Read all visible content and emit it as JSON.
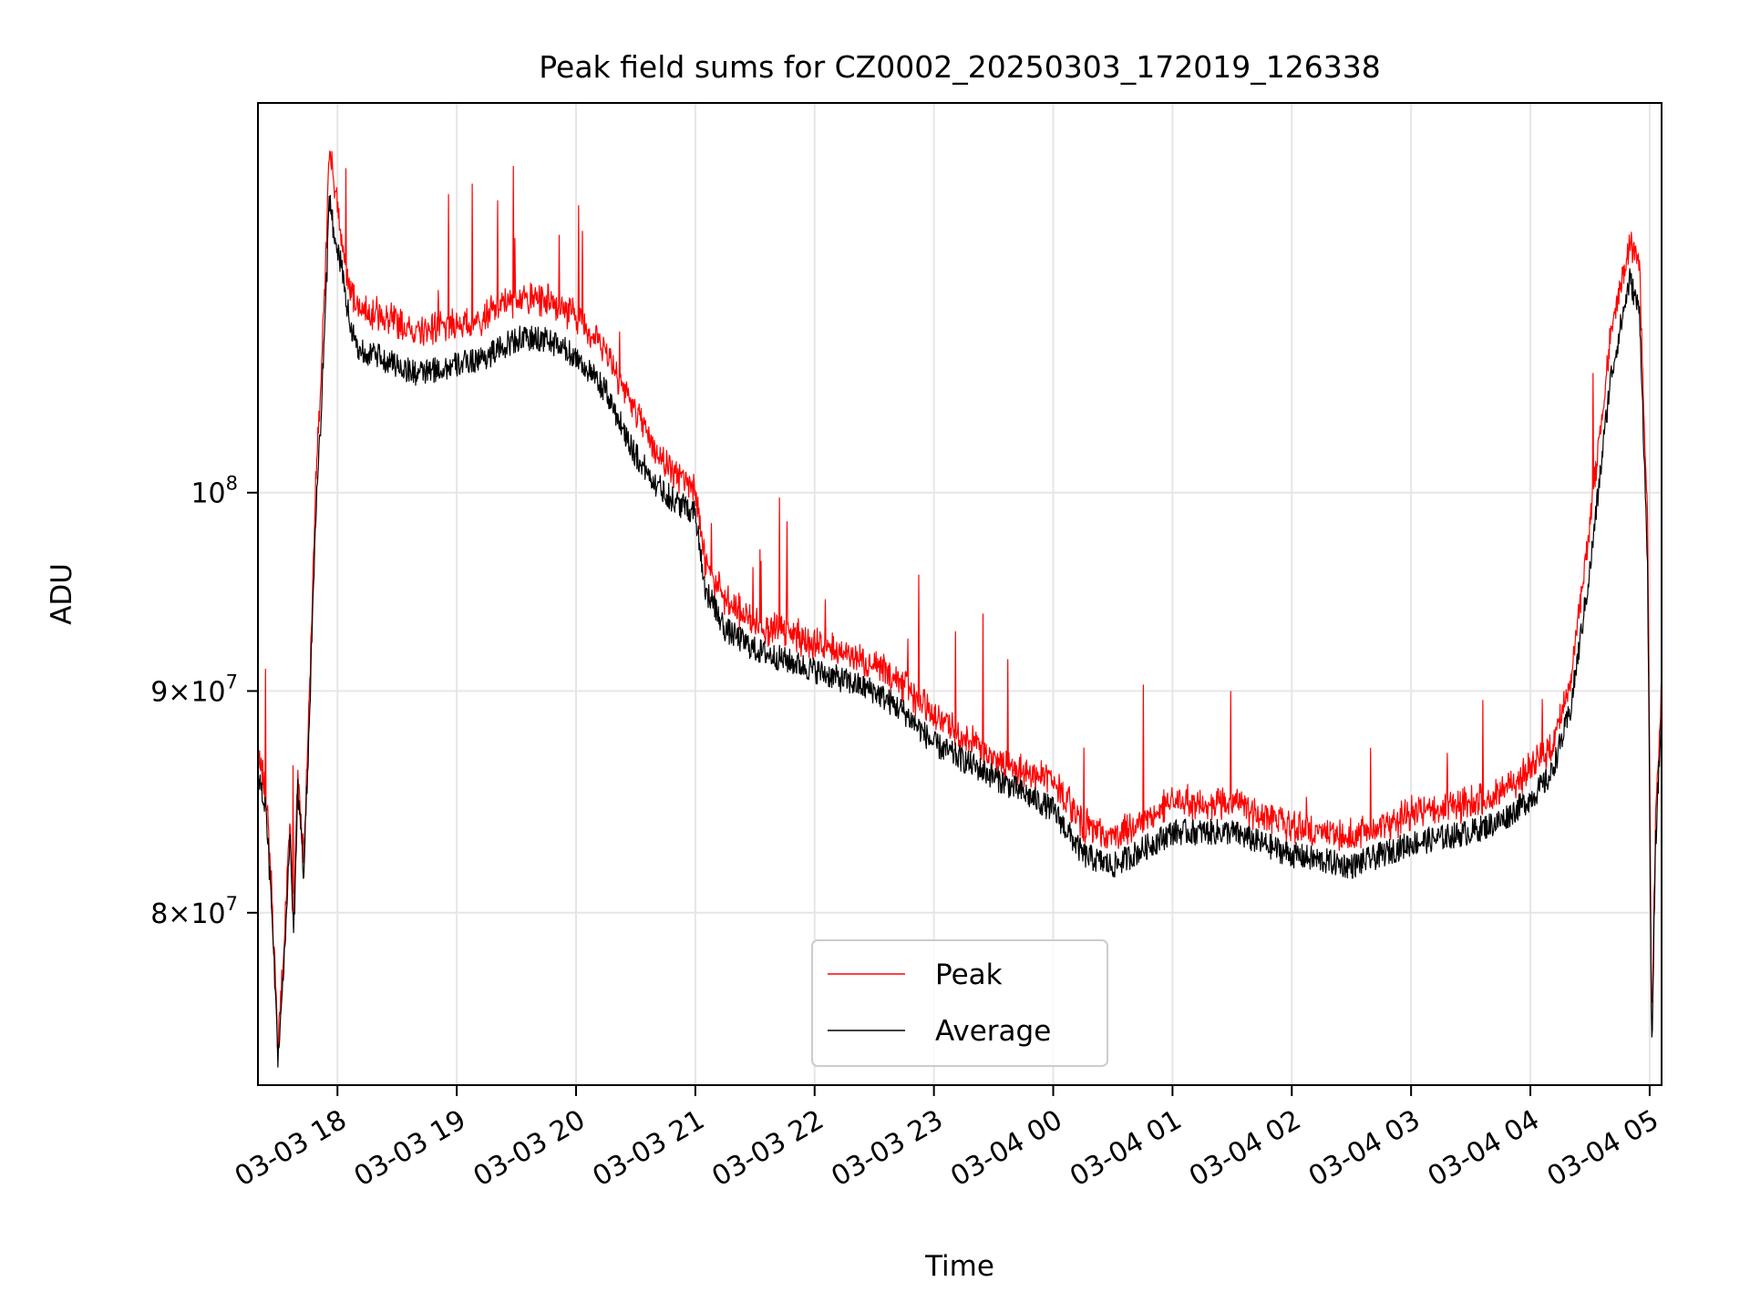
{
  "chart_data": {
    "type": "line",
    "title": "Peak field sums for CZ0002_20250303_172019_126338",
    "xlabel": "Time",
    "ylabel": "ADU",
    "yscale": "log",
    "grid": true,
    "legend_position": "lower center",
    "x_range": [
      "2025-03-03 17:20",
      "2025-03-04 05:06"
    ],
    "y_range": [
      73000000,
      123000000
    ],
    "x_ticks": [
      "03-03 18",
      "03-03 19",
      "03-03 20",
      "03-03 21",
      "03-03 22",
      "03-03 23",
      "03-04 00",
      "03-04 01",
      "03-04 02",
      "03-04 03",
      "03-04 04",
      "03-04 05"
    ],
    "y_ticks": [
      {
        "value": 80000000,
        "mantissa": "8",
        "exponent": "7"
      },
      {
        "value": 90000000,
        "mantissa": "9",
        "exponent": "7"
      },
      {
        "value": 100000000,
        "mantissa": "",
        "exponent": "8"
      }
    ],
    "series": [
      {
        "name": "Peak",
        "color": "#ff0000",
        "x": [
          "2025-03-03 17:20",
          "2025-03-03 17:24",
          "2025-03-03 17:27",
          "2025-03-03 17:30",
          "2025-03-03 17:33",
          "2025-03-03 17:36",
          "2025-03-03 17:38",
          "2025-03-03 17:40",
          "2025-03-03 17:43",
          "2025-03-03 17:46",
          "2025-03-03 17:49",
          "2025-03-03 17:51",
          "2025-03-03 17:54",
          "2025-03-03 17:56",
          "2025-03-03 17:58",
          "2025-03-03 18:00",
          "2025-03-03 18:03",
          "2025-03-03 18:06",
          "2025-03-03 18:10",
          "2025-03-03 18:20",
          "2025-03-03 18:30",
          "2025-03-03 18:40",
          "2025-03-03 19:00",
          "2025-03-03 19:15",
          "2025-03-03 19:30",
          "2025-03-03 19:45",
          "2025-03-03 20:00",
          "2025-03-03 20:15",
          "2025-03-03 20:30",
          "2025-03-03 20:40",
          "2025-03-03 20:50",
          "2025-03-03 21:00",
          "2025-03-03 21:05",
          "2025-03-03 21:15",
          "2025-03-03 21:30",
          "2025-03-03 21:45",
          "2025-03-03 22:00",
          "2025-03-03 22:30",
          "2025-03-03 22:45",
          "2025-03-03 23:00",
          "2025-03-03 23:30",
          "2025-03-04 00:00",
          "2025-03-04 00:15",
          "2025-03-04 00:30",
          "2025-03-04 01:00",
          "2025-03-04 01:30",
          "2025-03-04 02:00",
          "2025-03-04 02:30",
          "2025-03-04 03:00",
          "2025-03-04 03:30",
          "2025-03-04 03:45",
          "2025-03-04 04:00",
          "2025-03-04 04:10",
          "2025-03-04 04:20",
          "2025-03-04 04:30",
          "2025-03-04 04:40",
          "2025-03-04 04:45",
          "2025-03-04 04:50",
          "2025-03-04 04:55",
          "2025-03-04 04:59",
          "2025-03-04 05:01",
          "2025-03-04 05:03",
          "2025-03-04 05:06"
        ],
        "y": [
          86500000,
          85000000,
          80500000,
          74500000,
          78000000,
          84000000,
          79500000,
          86000000,
          82000000,
          90000000,
          100000000,
          104000000,
          112000000,
          120000000,
          118000000,
          116000000,
          113000000,
          111000000,
          110000000,
          109500000,
          109000000,
          108500000,
          109000000,
          109500000,
          110500000,
          110500000,
          109500000,
          107500000,
          104000000,
          102000000,
          100500000,
          100000000,
          96000000,
          94000000,
          93000000,
          92500000,
          92000000,
          91000000,
          90000000,
          88500000,
          86500000,
          85500000,
          83500000,
          83000000,
          84500000,
          84500000,
          83500000,
          83000000,
          84000000,
          84500000,
          85000000,
          86000000,
          87000000,
          90000000,
          98000000,
          108000000,
          111000000,
          114000000,
          112000000,
          98000000,
          75000000,
          84000000,
          90000000
        ]
      },
      {
        "name": "Average",
        "color": "#000000",
        "x": [
          "2025-03-03 17:20",
          "2025-03-03 17:24",
          "2025-03-03 17:27",
          "2025-03-03 17:30",
          "2025-03-03 17:33",
          "2025-03-03 17:36",
          "2025-03-03 17:38",
          "2025-03-03 17:40",
          "2025-03-03 17:43",
          "2025-03-03 17:46",
          "2025-03-03 17:49",
          "2025-03-03 17:51",
          "2025-03-03 17:54",
          "2025-03-03 17:56",
          "2025-03-03 17:58",
          "2025-03-03 18:00",
          "2025-03-03 18:03",
          "2025-03-03 18:06",
          "2025-03-03 18:10",
          "2025-03-03 18:20",
          "2025-03-03 18:30",
          "2025-03-03 18:40",
          "2025-03-03 19:00",
          "2025-03-03 19:15",
          "2025-03-03 19:30",
          "2025-03-03 19:45",
          "2025-03-03 20:00",
          "2025-03-03 20:15",
          "2025-03-03 20:30",
          "2025-03-03 20:40",
          "2025-03-03 20:50",
          "2025-03-03 21:00",
          "2025-03-03 21:05",
          "2025-03-03 21:15",
          "2025-03-03 21:30",
          "2025-03-03 21:45",
          "2025-03-03 22:00",
          "2025-03-03 22:30",
          "2025-03-03 22:45",
          "2025-03-03 23:00",
          "2025-03-03 23:30",
          "2025-03-04 00:00",
          "2025-03-04 00:15",
          "2025-03-04 00:30",
          "2025-03-04 01:00",
          "2025-03-04 01:30",
          "2025-03-04 02:00",
          "2025-03-04 02:30",
          "2025-03-04 03:00",
          "2025-03-04 03:30",
          "2025-03-04 03:45",
          "2025-03-04 04:00",
          "2025-03-04 04:10",
          "2025-03-04 04:20",
          "2025-03-04 04:30",
          "2025-03-04 04:40",
          "2025-03-04 04:45",
          "2025-03-04 04:50",
          "2025-03-04 04:55",
          "2025-03-04 04:59",
          "2025-03-04 05:01",
          "2025-03-04 05:03",
          "2025-03-04 05:06"
        ],
        "y": [
          86000000,
          84500000,
          80000000,
          74000000,
          77500000,
          83500000,
          79000000,
          85500000,
          81500000,
          89000000,
          98500000,
          102500000,
          110000000,
          117000000,
          115000000,
          114000000,
          112000000,
          109500000,
          108000000,
          107500000,
          107000000,
          106500000,
          107000000,
          107500000,
          108500000,
          108500000,
          107500000,
          105500000,
          102000000,
          100500000,
          99500000,
          99000000,
          95000000,
          93000000,
          92000000,
          91500000,
          91000000,
          90000000,
          89000000,
          87500000,
          86000000,
          84500000,
          82500000,
          82000000,
          83500000,
          83500000,
          82500000,
          82000000,
          83000000,
          83500000,
          84000000,
          85000000,
          86000000,
          89000000,
          96000000,
          106000000,
          109000000,
          112000000,
          110000000,
          96000000,
          74000000,
          83000000,
          89000000
        ]
      }
    ]
  }
}
